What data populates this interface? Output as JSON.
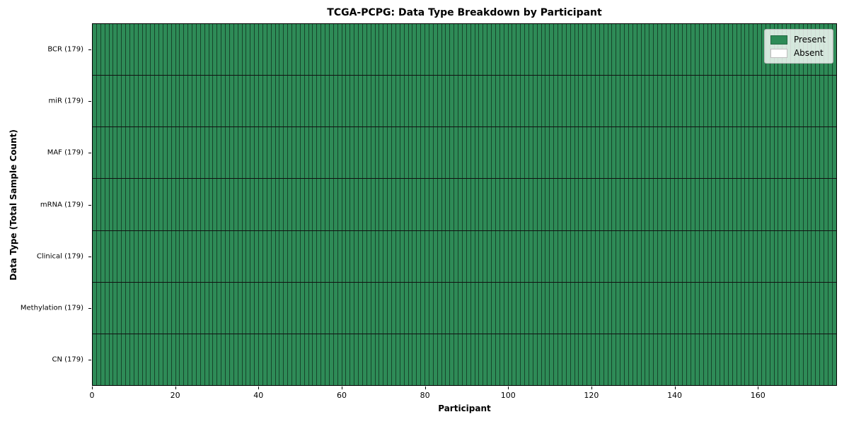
{
  "chart_data": {
    "type": "heatmap",
    "title": "TCGA-PCPG: Data Type Breakdown by Participant",
    "xlabel": "Participant",
    "ylabel": "Data Type (Total Sample Count)",
    "x_ticks": [
      0,
      20,
      40,
      60,
      80,
      100,
      120,
      140,
      160
    ],
    "x_max": 179,
    "n_participants": 179,
    "grid": "cell-borders",
    "legend_position": "upper-right",
    "rows": [
      {
        "label": "BCR",
        "display": "BCR (179)",
        "total_samples": 179,
        "present_count": 179
      },
      {
        "label": "miR",
        "display": "miR (179)",
        "total_samples": 179,
        "present_count": 179
      },
      {
        "label": "MAF",
        "display": "MAF (179)",
        "total_samples": 179,
        "present_count": 179
      },
      {
        "label": "mRNA",
        "display": "mRNA (179)",
        "total_samples": 179,
        "present_count": 179
      },
      {
        "label": "Clinical",
        "display": "Clinical (179)",
        "total_samples": 179,
        "present_count": 179
      },
      {
        "label": "Methylation",
        "display": "Methylation (179)",
        "total_samples": 179,
        "present_count": 179
      },
      {
        "label": "CN",
        "display": "CN (179)",
        "total_samples": 179,
        "present_count": 179
      }
    ],
    "legend": [
      {
        "label": "Present",
        "color": "#2e8b57"
      },
      {
        "label": "Absent",
        "color": "#ffffff"
      }
    ],
    "colors": {
      "present": "#2e8b57",
      "absent": "#ffffff",
      "cell_border": "rgba(0,0,0,0.5)",
      "row_border": "#111111",
      "axes_border": "#000000"
    }
  }
}
